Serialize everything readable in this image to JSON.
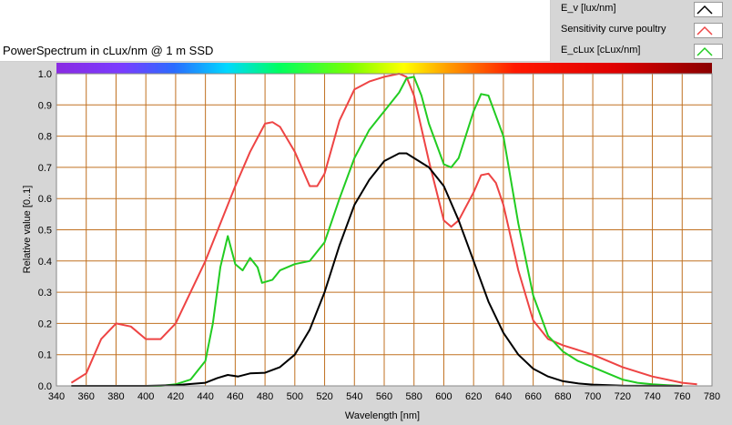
{
  "title": "PowerSpectrum in cLux/nm @ 1 m SSD",
  "legend": [
    {
      "label": "E_v [lux/nm]",
      "color": "#000000"
    },
    {
      "label": "Sensitivity curve poultry",
      "color": "#ee4444"
    },
    {
      "label": "E_cLux [cLux/nm]",
      "color": "#22cc22"
    }
  ],
  "chart_data": {
    "type": "line",
    "title": "PowerSpectrum in cLux/nm @ 1 m SSD",
    "xlabel": "Wavelength [nm]",
    "ylabel": "Relative value [0..1]",
    "xlim": [
      340,
      780
    ],
    "ylim": [
      0,
      1.0
    ],
    "xticks": [
      "340",
      "360",
      "380",
      "400",
      "420",
      "440",
      "460",
      "480",
      "500",
      "520",
      "540",
      "560",
      "580",
      "600",
      "620",
      "640",
      "660",
      "680",
      "700",
      "720",
      "740",
      "760",
      "780"
    ],
    "yticks": [
      "0.0",
      "0.1",
      "0.2",
      "0.3",
      "0.4",
      "0.5",
      "0.6",
      "0.7",
      "0.8",
      "0.9",
      "1.0"
    ],
    "grid": true,
    "grid_color": "#c07020",
    "plot_background": "#ffffff",
    "spectrum_bar": true,
    "series": [
      {
        "name": "E_v [lux/nm]",
        "color": "#000000",
        "points": [
          [
            350,
            0
          ],
          [
            400,
            0
          ],
          [
            420,
            0.002
          ],
          [
            440,
            0.01
          ],
          [
            448,
            0.025
          ],
          [
            455,
            0.035
          ],
          [
            462,
            0.03
          ],
          [
            470,
            0.04
          ],
          [
            480,
            0.042
          ],
          [
            490,
            0.06
          ],
          [
            500,
            0.1
          ],
          [
            510,
            0.18
          ],
          [
            520,
            0.3
          ],
          [
            530,
            0.45
          ],
          [
            540,
            0.58
          ],
          [
            550,
            0.66
          ],
          [
            560,
            0.72
          ],
          [
            570,
            0.745
          ],
          [
            575,
            0.745
          ],
          [
            580,
            0.73
          ],
          [
            590,
            0.7
          ],
          [
            600,
            0.64
          ],
          [
            610,
            0.53
          ],
          [
            620,
            0.4
          ],
          [
            630,
            0.27
          ],
          [
            640,
            0.17
          ],
          [
            650,
            0.1
          ],
          [
            660,
            0.055
          ],
          [
            670,
            0.03
          ],
          [
            680,
            0.015
          ],
          [
            690,
            0.008
          ],
          [
            700,
            0.004
          ],
          [
            720,
            0.001
          ],
          [
            760,
            0
          ]
        ]
      },
      {
        "name": "Sensitivity curve poultry",
        "color": "#ee4444",
        "points": [
          [
            350,
            0.01
          ],
          [
            360,
            0.04
          ],
          [
            370,
            0.15
          ],
          [
            380,
            0.2
          ],
          [
            390,
            0.19
          ],
          [
            400,
            0.15
          ],
          [
            410,
            0.15
          ],
          [
            420,
            0.2
          ],
          [
            440,
            0.4
          ],
          [
            460,
            0.64
          ],
          [
            470,
            0.75
          ],
          [
            480,
            0.84
          ],
          [
            485,
            0.845
          ],
          [
            490,
            0.83
          ],
          [
            500,
            0.75
          ],
          [
            510,
            0.64
          ],
          [
            515,
            0.64
          ],
          [
            520,
            0.68
          ],
          [
            530,
            0.85
          ],
          [
            540,
            0.95
          ],
          [
            550,
            0.975
          ],
          [
            560,
            0.99
          ],
          [
            570,
            1.0
          ],
          [
            575,
            0.99
          ],
          [
            580,
            0.93
          ],
          [
            590,
            0.72
          ],
          [
            600,
            0.53
          ],
          [
            605,
            0.51
          ],
          [
            610,
            0.53
          ],
          [
            620,
            0.62
          ],
          [
            625,
            0.675
          ],
          [
            630,
            0.68
          ],
          [
            635,
            0.65
          ],
          [
            640,
            0.58
          ],
          [
            650,
            0.37
          ],
          [
            660,
            0.21
          ],
          [
            670,
            0.15
          ],
          [
            680,
            0.13
          ],
          [
            700,
            0.1
          ],
          [
            720,
            0.06
          ],
          [
            740,
            0.03
          ],
          [
            760,
            0.01
          ],
          [
            770,
            0.005
          ]
        ]
      },
      {
        "name": "E_cLux [cLux/nm]",
        "color": "#22cc22",
        "points": [
          [
            350,
            0
          ],
          [
            410,
            0
          ],
          [
            420,
            0.005
          ],
          [
            430,
            0.02
          ],
          [
            440,
            0.08
          ],
          [
            445,
            0.2
          ],
          [
            450,
            0.38
          ],
          [
            455,
            0.48
          ],
          [
            460,
            0.39
          ],
          [
            465,
            0.37
          ],
          [
            470,
            0.41
          ],
          [
            475,
            0.38
          ],
          [
            478,
            0.33
          ],
          [
            485,
            0.34
          ],
          [
            490,
            0.37
          ],
          [
            500,
            0.39
          ],
          [
            510,
            0.4
          ],
          [
            520,
            0.46
          ],
          [
            530,
            0.6
          ],
          [
            540,
            0.73
          ],
          [
            550,
            0.82
          ],
          [
            560,
            0.88
          ],
          [
            570,
            0.94
          ],
          [
            575,
            0.985
          ],
          [
            580,
            0.99
          ],
          [
            585,
            0.93
          ],
          [
            590,
            0.84
          ],
          [
            600,
            0.71
          ],
          [
            605,
            0.7
          ],
          [
            610,
            0.73
          ],
          [
            620,
            0.88
          ],
          [
            625,
            0.935
          ],
          [
            630,
            0.93
          ],
          [
            640,
            0.8
          ],
          [
            650,
            0.52
          ],
          [
            660,
            0.29
          ],
          [
            670,
            0.16
          ],
          [
            680,
            0.11
          ],
          [
            690,
            0.08
          ],
          [
            700,
            0.06
          ],
          [
            710,
            0.04
          ],
          [
            720,
            0.02
          ],
          [
            730,
            0.01
          ],
          [
            740,
            0.005
          ],
          [
            750,
            0.002
          ],
          [
            760,
            0
          ]
        ]
      }
    ]
  }
}
